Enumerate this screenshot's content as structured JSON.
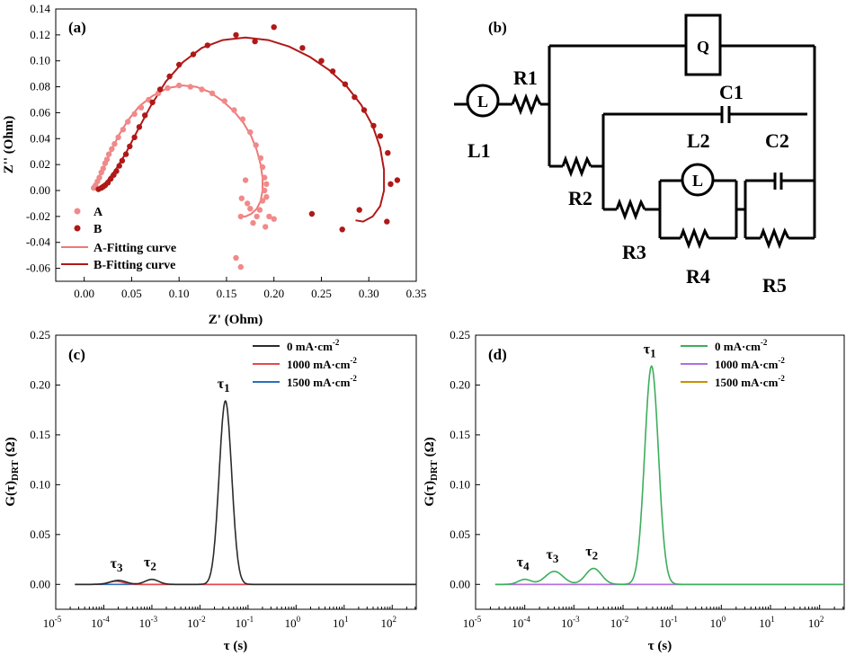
{
  "panels": {
    "a": {
      "label": "(a)"
    },
    "b": {
      "label": "(b)"
    },
    "c": {
      "label": "(c)"
    },
    "d": {
      "label": "(d)"
    }
  },
  "chart_data": [
    {
      "panel": "a",
      "type": "scatter",
      "xlabel": "Z' (Ohm)",
      "ylabel": "Z'' (Ohm)",
      "xlim": [
        -0.03,
        0.35
      ],
      "ylim": [
        -0.07,
        0.14
      ],
      "xticks": [
        "0.00",
        "0.05",
        "0.10",
        "0.15",
        "0.20",
        "0.25",
        "0.30",
        "0.35"
      ],
      "xtick_values": [
        0,
        0.05,
        0.1,
        0.15,
        0.2,
        0.25,
        0.3,
        0.35
      ],
      "yticks": [
        "-0.06",
        "-0.04",
        "-0.02",
        "0.00",
        "0.02",
        "0.04",
        "0.06",
        "0.08",
        "0.10",
        "0.12",
        "0.14"
      ],
      "ytick_values": [
        -0.06,
        -0.04,
        -0.02,
        0,
        0.02,
        0.04,
        0.06,
        0.08,
        0.1,
        0.12,
        0.14
      ],
      "legend_position": "bottom-left",
      "series": [
        {
          "name": "A",
          "kind": "points",
          "color": "#f08a8a",
          "points": [
            [
              0.01,
              0.002
            ],
            [
              0.012,
              0.004
            ],
            [
              0.014,
              0.007
            ],
            [
              0.016,
              0.01
            ],
            [
              0.018,
              0.014
            ],
            [
              0.02,
              0.017
            ],
            [
              0.022,
              0.021
            ],
            [
              0.024,
              0.024
            ],
            [
              0.026,
              0.028
            ],
            [
              0.029,
              0.032
            ],
            [
              0.032,
              0.036
            ],
            [
              0.036,
              0.041
            ],
            [
              0.041,
              0.047
            ],
            [
              0.046,
              0.053
            ],
            [
              0.053,
              0.059
            ],
            [
              0.06,
              0.064
            ],
            [
              0.068,
              0.07
            ],
            [
              0.078,
              0.075
            ],
            [
              0.088,
              0.079
            ],
            [
              0.1,
              0.081
            ],
            [
              0.112,
              0.08
            ],
            [
              0.124,
              0.078
            ],
            [
              0.135,
              0.075
            ],
            [
              0.148,
              0.069
            ],
            [
              0.158,
              0.062
            ],
            [
              0.167,
              0.055
            ],
            [
              0.175,
              0.045
            ],
            [
              0.181,
              0.035
            ],
            [
              0.186,
              0.025
            ],
            [
              0.188,
              0.018
            ],
            [
              0.19,
              0.01
            ],
            [
              0.192,
              0.005
            ],
            [
              0.19,
              0.0
            ],
            [
              0.192,
              -0.005
            ],
            [
              0.188,
              -0.008
            ],
            [
              0.185,
              -0.015
            ],
            [
              0.182,
              -0.02
            ],
            [
              0.175,
              -0.014
            ],
            [
              0.17,
              0.008
            ],
            [
              0.166,
              -0.006
            ],
            [
              0.165,
              -0.02
            ],
            [
              0.178,
              -0.025
            ],
            [
              0.191,
              -0.028
            ],
            [
              0.195,
              -0.02
            ],
            [
              0.172,
              -0.01
            ],
            [
              0.2,
              -0.022
            ],
            [
              0.16,
              -0.052
            ],
            [
              0.165,
              -0.059
            ]
          ]
        },
        {
          "name": "B",
          "kind": "points",
          "color": "#b01818",
          "points": [
            [
              0.015,
              0.001
            ],
            [
              0.018,
              0.002
            ],
            [
              0.02,
              0.003
            ],
            [
              0.022,
              0.004
            ],
            [
              0.025,
              0.006
            ],
            [
              0.028,
              0.009
            ],
            [
              0.031,
              0.012
            ],
            [
              0.034,
              0.015
            ],
            [
              0.037,
              0.019
            ],
            [
              0.04,
              0.023
            ],
            [
              0.044,
              0.028
            ],
            [
              0.048,
              0.034
            ],
            [
              0.053,
              0.041
            ],
            [
              0.058,
              0.049
            ],
            [
              0.064,
              0.058
            ],
            [
              0.072,
              0.068
            ],
            [
              0.08,
              0.078
            ],
            [
              0.09,
              0.088
            ],
            [
              0.1,
              0.097
            ],
            [
              0.115,
              0.105
            ],
            [
              0.13,
              0.112
            ],
            [
              0.16,
              0.12
            ],
            [
              0.18,
              0.115
            ],
            [
              0.2,
              0.126
            ],
            [
              0.23,
              0.11
            ],
            [
              0.25,
              0.1
            ],
            [
              0.262,
              0.092
            ],
            [
              0.275,
              0.082
            ],
            [
              0.285,
              0.072
            ],
            [
              0.295,
              0.062
            ],
            [
              0.305,
              0.05
            ],
            [
              0.312,
              0.042
            ],
            [
              0.32,
              0.029
            ],
            [
              0.33,
              0.008
            ],
            [
              0.323,
              0.005
            ],
            [
              0.29,
              -0.015
            ],
            [
              0.272,
              -0.03
            ],
            [
              0.24,
              -0.018
            ],
            [
              0.319,
              -0.024
            ]
          ]
        },
        {
          "name": "A-Fitting curve",
          "kind": "line",
          "color": "#f07878",
          "points": [
            [
              0.01,
              0.002
            ],
            [
              0.014,
              0.008
            ],
            [
              0.02,
              0.017
            ],
            [
              0.028,
              0.03
            ],
            [
              0.036,
              0.042
            ],
            [
              0.046,
              0.054
            ],
            [
              0.058,
              0.065
            ],
            [
              0.072,
              0.073
            ],
            [
              0.088,
              0.079
            ],
            [
              0.104,
              0.081
            ],
            [
              0.118,
              0.08
            ],
            [
              0.132,
              0.076
            ],
            [
              0.146,
              0.069
            ],
            [
              0.158,
              0.061
            ],
            [
              0.168,
              0.052
            ],
            [
              0.176,
              0.042
            ],
            [
              0.182,
              0.031
            ],
            [
              0.186,
              0.02
            ],
            [
              0.188,
              0.01
            ],
            [
              0.188,
              0.0
            ],
            [
              0.186,
              -0.008
            ],
            [
              0.182,
              -0.014
            ],
            [
              0.176,
              -0.018
            ],
            [
              0.17,
              -0.02
            ],
            [
              0.166,
              -0.02
            ]
          ]
        },
        {
          "name": "B-Fitting curve",
          "kind": "line",
          "color": "#b01818",
          "points": [
            [
              0.015,
              0.001
            ],
            [
              0.02,
              0.004
            ],
            [
              0.026,
              0.009
            ],
            [
              0.034,
              0.017
            ],
            [
              0.044,
              0.029
            ],
            [
              0.056,
              0.046
            ],
            [
              0.07,
              0.065
            ],
            [
              0.086,
              0.084
            ],
            [
              0.104,
              0.099
            ],
            [
              0.124,
              0.11
            ],
            [
              0.146,
              0.116
            ],
            [
              0.17,
              0.118
            ],
            [
              0.194,
              0.116
            ],
            [
              0.216,
              0.111
            ],
            [
              0.238,
              0.103
            ],
            [
              0.258,
              0.093
            ],
            [
              0.276,
              0.081
            ],
            [
              0.292,
              0.066
            ],
            [
              0.304,
              0.05
            ],
            [
              0.312,
              0.033
            ],
            [
              0.316,
              0.016
            ],
            [
              0.316,
              0.0
            ],
            [
              0.312,
              -0.012
            ],
            [
              0.304,
              -0.02
            ],
            [
              0.294,
              -0.024
            ],
            [
              0.286,
              -0.023
            ]
          ]
        }
      ]
    },
    {
      "panel": "c",
      "type": "line",
      "xlabel": "τ (s)",
      "ylabel": "G(τ)DRT (Ω)",
      "x_scale": "log",
      "xlim": [
        -5,
        2.5
      ],
      "ylim": [
        -0.025,
        0.25
      ],
      "xticks": [
        "-5",
        "-4",
        "-3",
        "-2",
        "-1",
        "0",
        "1",
        "2"
      ],
      "yticks": [
        "0.00",
        "0.05",
        "0.10",
        "0.15",
        "0.20",
        "0.25"
      ],
      "ytick_values": [
        0,
        0.05,
        0.1,
        0.15,
        0.2,
        0.25
      ],
      "legend_position": "top-right",
      "peaks": [
        {
          "label": "τ3",
          "x": -3.7,
          "y": 0.004
        },
        {
          "label": "τ2",
          "x": -3.0,
          "y": 0.005
        },
        {
          "label": "τ1",
          "x": -1.47,
          "y": 0.184
        }
      ],
      "x_range_shown": [
        -4.6,
        2.5
      ],
      "series": [
        {
          "name": "0 mA·cm-2",
          "color": "#2b2b2b",
          "gaussians": [
            [
              -3.7,
              0.004,
              0.16
            ],
            [
              -3.0,
              0.005,
              0.14
            ],
            [
              -1.47,
              0.184,
              0.13
            ]
          ]
        },
        {
          "name": "1000 mA·cm-2",
          "color": "#e8474a",
          "gaussians": [
            [
              -3.75,
              0.003,
              0.16
            ]
          ]
        },
        {
          "name": "1500 mA·cm-2",
          "color": "#2a6fbf",
          "gaussians": []
        }
      ]
    },
    {
      "panel": "d",
      "type": "line",
      "xlabel": "τ (s)",
      "ylabel": "G(τ)DRT (Ω)",
      "x_scale": "log",
      "xlim": [
        -5,
        2.5
      ],
      "ylim": [
        -0.025,
        0.25
      ],
      "xticks": [
        "-5",
        "-4",
        "-3",
        "-2",
        "-1",
        "0",
        "1",
        "2"
      ],
      "yticks": [
        "0.00",
        "0.05",
        "0.10",
        "0.15",
        "0.20",
        "0.25"
      ],
      "ytick_values": [
        0,
        0.05,
        0.1,
        0.15,
        0.2,
        0.25
      ],
      "legend_position": "top-right",
      "peaks": [
        {
          "label": "τ4",
          "x": -4.0,
          "y": 0.005
        },
        {
          "label": "τ3",
          "x": -3.4,
          "y": 0.013
        },
        {
          "label": "τ2",
          "x": -2.6,
          "y": 0.016
        },
        {
          "label": "τ1",
          "x": -1.42,
          "y": 0.219
        }
      ],
      "x_range_shown": [
        -4.6,
        2.5
      ],
      "series": [
        {
          "name": "0 mA·cm-2",
          "color": "#3cae5c",
          "gaussians": [
            [
              -4.0,
              0.005,
              0.13
            ],
            [
              -3.4,
              0.013,
              0.18
            ],
            [
              -2.6,
              0.016,
              0.16
            ],
            [
              -1.42,
              0.219,
              0.14
            ]
          ]
        },
        {
          "name": "1000 mA·cm-2",
          "color": "#b06fe0",
          "gaussians": []
        },
        {
          "name": "1500 mA·cm-2",
          "color": "#c89000",
          "gaussians": []
        }
      ]
    }
  ],
  "circuit": {
    "labels": {
      "L1": "L1",
      "R1": "R1",
      "Q": "Q",
      "C1": "C1",
      "L2": "L2",
      "C2": "C2",
      "R2": "R2",
      "R3": "R3",
      "R4": "R4",
      "R5": "R5",
      "L": "L"
    }
  }
}
